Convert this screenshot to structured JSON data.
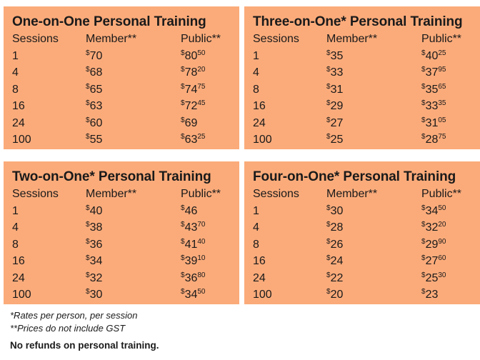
{
  "currency_symbol": "$",
  "headers": {
    "sessions": "Sessions",
    "member": "Member**",
    "public": "Public**"
  },
  "cards": [
    {
      "title": "One-on-One Personal Training",
      "rows": [
        {
          "sessions": "1",
          "member": "70",
          "public_dollars": "80",
          "public_cents": "50"
        },
        {
          "sessions": "4",
          "member": "68",
          "public_dollars": "78",
          "public_cents": "20"
        },
        {
          "sessions": "8",
          "member": "65",
          "public_dollars": "74",
          "public_cents": "75"
        },
        {
          "sessions": "16",
          "member": "63",
          "public_dollars": "72",
          "public_cents": "45"
        },
        {
          "sessions": "24",
          "member": "60",
          "public_dollars": "69",
          "public_cents": ""
        },
        {
          "sessions": "100",
          "member": "55",
          "public_dollars": "63",
          "public_cents": "25"
        }
      ]
    },
    {
      "title": "Three-on-One* Personal Training",
      "rows": [
        {
          "sessions": "1",
          "member": "35",
          "public_dollars": "40",
          "public_cents": "25"
        },
        {
          "sessions": "4",
          "member": "33",
          "public_dollars": "37",
          "public_cents": "95"
        },
        {
          "sessions": "8",
          "member": "31",
          "public_dollars": "35",
          "public_cents": "65"
        },
        {
          "sessions": "16",
          "member": "29",
          "public_dollars": "33",
          "public_cents": "35"
        },
        {
          "sessions": "24",
          "member": "27",
          "public_dollars": "31",
          "public_cents": "05"
        },
        {
          "sessions": "100",
          "member": "25",
          "public_dollars": "28",
          "public_cents": "75"
        }
      ]
    },
    {
      "title": "Two-on-One* Personal Training",
      "rows": [
        {
          "sessions": "1",
          "member": "40",
          "public_dollars": "46",
          "public_cents": ""
        },
        {
          "sessions": "4",
          "member": "38",
          "public_dollars": "43",
          "public_cents": "70"
        },
        {
          "sessions": "8",
          "member": "36",
          "public_dollars": "41",
          "public_cents": "40"
        },
        {
          "sessions": "16",
          "member": "34",
          "public_dollars": "39",
          "public_cents": "10"
        },
        {
          "sessions": "24",
          "member": "32",
          "public_dollars": "36",
          "public_cents": "80"
        },
        {
          "sessions": "100",
          "member": "30",
          "public_dollars": "34",
          "public_cents": "50"
        }
      ]
    },
    {
      "title": "Four-on-One* Personal Training",
      "rows": [
        {
          "sessions": "1",
          "member": "30",
          "public_dollars": "34",
          "public_cents": "50"
        },
        {
          "sessions": "4",
          "member": "28",
          "public_dollars": "32",
          "public_cents": "20"
        },
        {
          "sessions": "8",
          "member": "26",
          "public_dollars": "29",
          "public_cents": "90"
        },
        {
          "sessions": "16",
          "member": "24",
          "public_dollars": "27",
          "public_cents": "60"
        },
        {
          "sessions": "24",
          "member": "22",
          "public_dollars": "25",
          "public_cents": "30"
        },
        {
          "sessions": "100",
          "member": "20",
          "public_dollars": "23",
          "public_cents": ""
        }
      ]
    }
  ],
  "notes": {
    "rates": "*Rates per person, per session",
    "gst": "**Prices do not include GST",
    "refund": "No refunds on personal training."
  }
}
